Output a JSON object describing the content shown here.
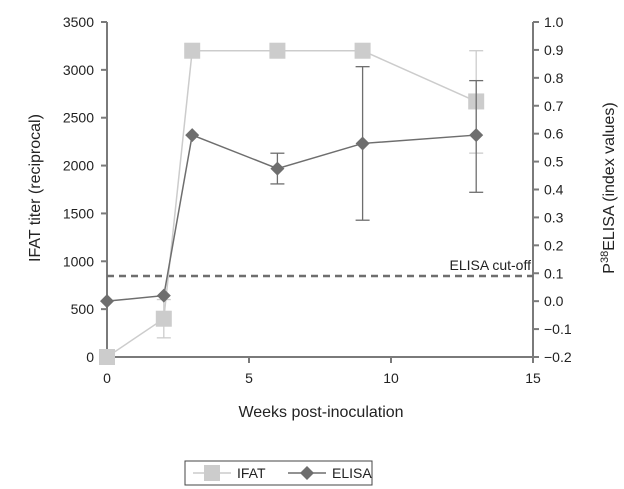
{
  "chart_data": {
    "type": "line",
    "xlabel": "Weeks post-inoculation",
    "ylabel": "IFAT titer (reciprocal)",
    "y2label_sup": "38",
    "y2label_pre": "P",
    "y2label_post": "ELISA (index values)",
    "xlim": [
      0,
      15
    ],
    "ylim": [
      0,
      3500
    ],
    "y2lim": [
      -0.2,
      1.0
    ],
    "x_ticks": [
      0,
      5,
      10,
      15
    ],
    "y_ticks": [
      0,
      500,
      1000,
      1500,
      2000,
      2500,
      3000,
      3500
    ],
    "y2_ticks": [
      -0.2,
      -0.1,
      0.0,
      0.1,
      0.2,
      0.3,
      0.4,
      0.5,
      0.6,
      0.7,
      0.8,
      0.9,
      1.0
    ],
    "grid": false,
    "legend_position": "bottom-center",
    "cutoff": {
      "label": "ELISA cut-off",
      "value": 0.09,
      "axis": "right"
    },
    "series": [
      {
        "name": "IFAT",
        "axis": "left",
        "color": "#cccccc",
        "marker": "square",
        "x": [
          0,
          2,
          3,
          6,
          9,
          13
        ],
        "y": [
          0,
          400,
          3200,
          3200,
          3200,
          2670
        ],
        "err_low": [
          null,
          200,
          null,
          null,
          null,
          2130
        ],
        "err_high": [
          null,
          600,
          null,
          null,
          null,
          3200
        ]
      },
      {
        "name": "ELISA",
        "axis": "right",
        "color": "#6e6e6e",
        "marker": "diamond",
        "x": [
          0,
          2,
          3,
          6,
          9,
          13
        ],
        "y": [
          0.0,
          0.02,
          0.595,
          0.475,
          0.565,
          0.595
        ],
        "err_low": [
          null,
          null,
          null,
          0.42,
          0.29,
          0.39
        ],
        "err_high": [
          null,
          null,
          null,
          0.53,
          0.84,
          0.79
        ]
      }
    ]
  }
}
